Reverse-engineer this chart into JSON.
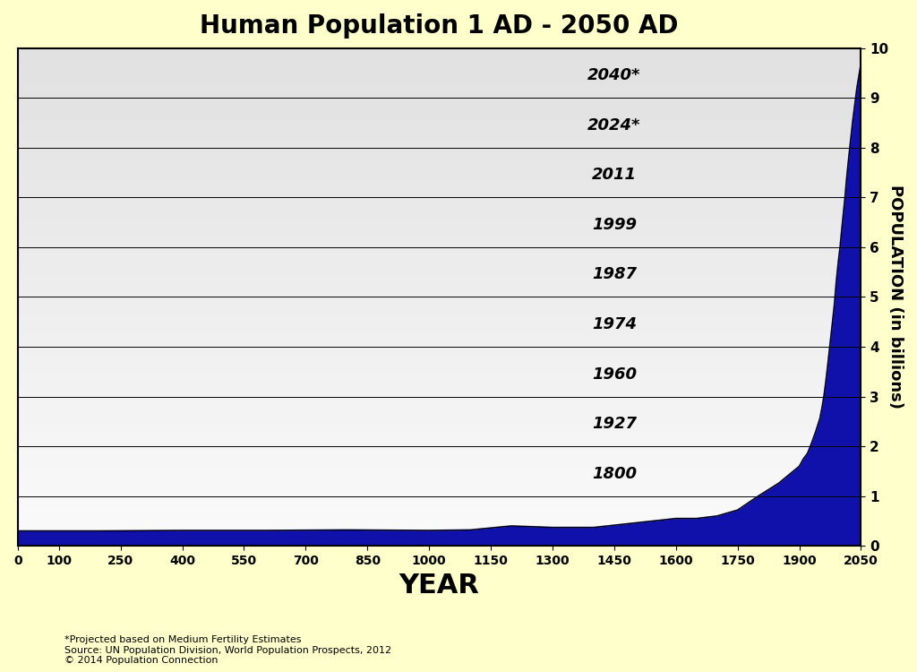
{
  "title": "Human Population 1 AD - 2050 AD",
  "xlabel": "YEAR",
  "ylabel": "POPULATION (in billions)",
  "background_color": "#FFFFCC",
  "xlim": [
    0,
    2050
  ],
  "ylim": [
    0,
    10
  ],
  "xticks": [
    0,
    100,
    250,
    400,
    550,
    700,
    850,
    1000,
    1150,
    1300,
    1450,
    1600,
    1750,
    1900,
    2050
  ],
  "yticks": [
    0,
    1,
    2,
    3,
    4,
    5,
    6,
    7,
    8,
    9,
    10
  ],
  "milestone_years": [
    "1800",
    "1927",
    "1960",
    "1974",
    "1987",
    "1999",
    "2011",
    "2024*",
    "2040*"
  ],
  "milestone_pops": [
    1,
    2,
    3,
    4,
    5,
    6,
    7,
    8,
    9
  ],
  "footnote_lines": [
    "*Projected based on Medium Fertility Estimates",
    "Source: UN Population Division, World Population Prospects, 2012",
    "© 2014 Population Connection"
  ],
  "data_years": [
    1,
    200,
    400,
    600,
    800,
    1000,
    1100,
    1200,
    1300,
    1400,
    1500,
    1600,
    1650,
    1700,
    1750,
    1800,
    1850,
    1900,
    1910,
    1920,
    1930,
    1940,
    1950,
    1955,
    1960,
    1965,
    1970,
    1975,
    1980,
    1985,
    1990,
    1995,
    1999,
    2000,
    2005,
    2010,
    2011,
    2015,
    2020,
    2024,
    2030,
    2040,
    2050
  ],
  "data_pop": [
    0.3,
    0.3,
    0.31,
    0.31,
    0.32,
    0.31,
    0.32,
    0.4,
    0.37,
    0.37,
    0.46,
    0.55,
    0.55,
    0.6,
    0.72,
    1.0,
    1.26,
    1.6,
    1.75,
    1.86,
    2.07,
    2.3,
    2.56,
    2.77,
    3.02,
    3.34,
    3.7,
    4.08,
    4.45,
    4.83,
    5.32,
    5.72,
    6.0,
    6.09,
    6.51,
    6.92,
    7.0,
    7.38,
    7.79,
    8.1,
    8.55,
    9.2,
    9.7
  ]
}
